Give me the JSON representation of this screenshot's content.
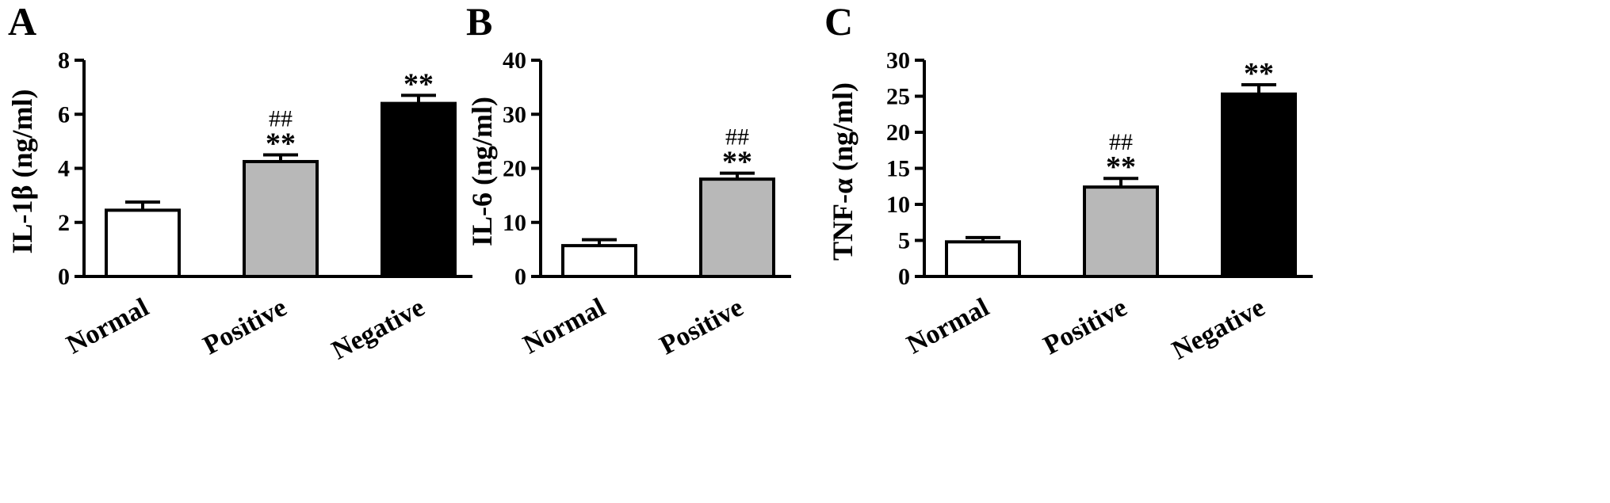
{
  "colors": {
    "Normal": "#ffffff",
    "Positive": "#b8b8b8",
    "Negative": "#000000",
    "axis": "#000000"
  },
  "chart_data": [
    {
      "panel": "A",
      "type": "bar",
      "ylabel": "IL-1β (ng/ml)",
      "categories": [
        "Normal",
        "Positive",
        "Negative"
      ],
      "values": [
        2.45,
        4.25,
        6.4
      ],
      "errors": [
        0.3,
        0.25,
        0.3
      ],
      "annotations": [
        "",
        "##\n**",
        "**"
      ],
      "ylim": [
        0,
        8
      ],
      "yticks": [
        0,
        2,
        4,
        6,
        8
      ]
    },
    {
      "panel": "B",
      "type": "bar",
      "ylabel": "IL-6 (ng/ml)",
      "categories": [
        "Normal",
        "Positive"
      ],
      "values": [
        5.7,
        18.0
      ],
      "errors": [
        1.1,
        1.1
      ],
      "annotations": [
        "",
        "##\n**"
      ],
      "ylim": [
        0,
        40
      ],
      "yticks": [
        0,
        10,
        20,
        30,
        40
      ]
    },
    {
      "panel": "C",
      "type": "bar",
      "ylabel": "TNF-α (ng/ml)",
      "categories": [
        "Normal",
        "Positive",
        "Negative"
      ],
      "values": [
        4.8,
        12.4,
        25.3
      ],
      "errors": [
        0.6,
        1.2,
        1.3
      ],
      "annotations": [
        "",
        "##\n**",
        "**"
      ],
      "ylim": [
        0,
        30
      ],
      "yticks": [
        0,
        5,
        10,
        15,
        20,
        25,
        30
      ]
    }
  ]
}
